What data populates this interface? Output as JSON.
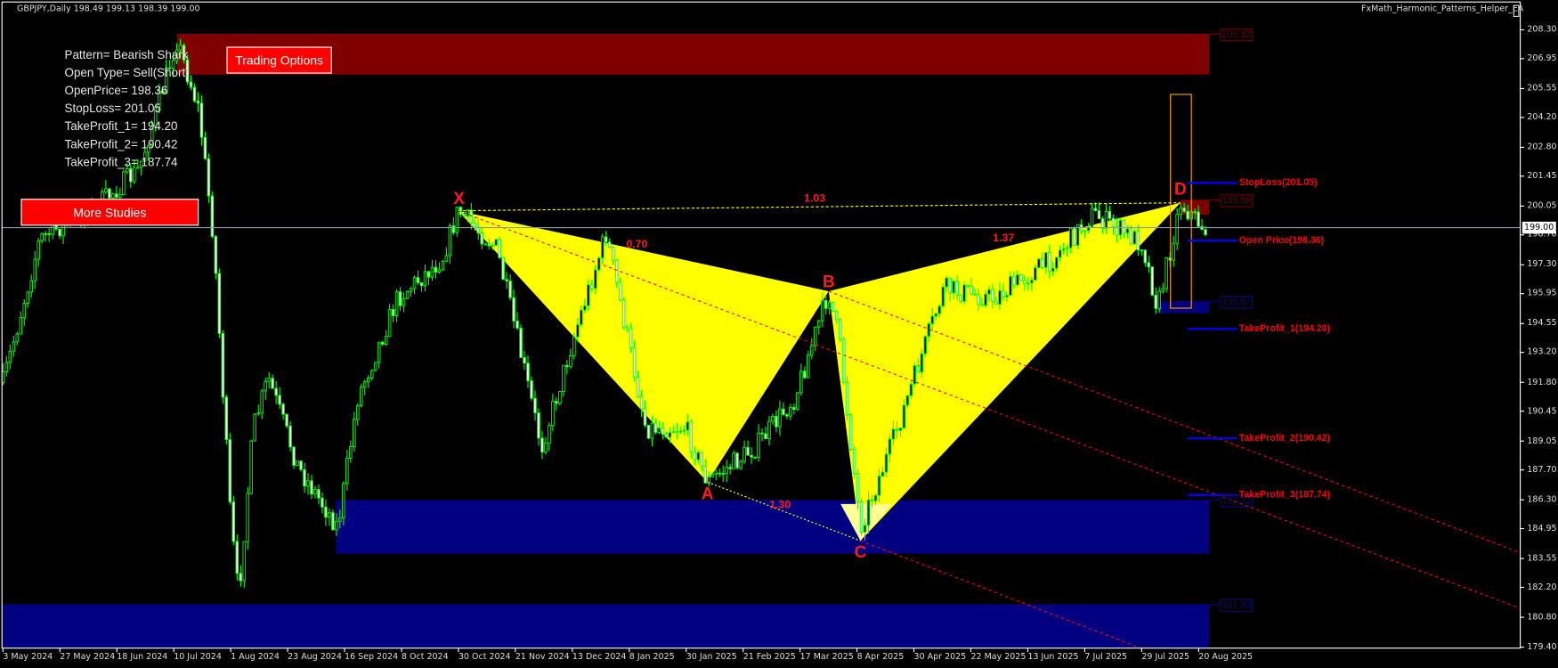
{
  "header": {
    "symbol_info": "GBPJPY,Daily  198.49 199.13 198.39 199.00",
    "ea_name": "FxMath_Harmonic_Patterns_Helper_EA"
  },
  "info_panel": [
    "Pattern= Bearish Shark",
    "Open Type= Sell(Short)",
    "OpenPrice= 198.36",
    "StopLoss= 201.05",
    "TakeProfit_1= 194.20",
    "TakeProfit_2= 190.42",
    "TakeProfit_3= 187.74"
  ],
  "buttons": {
    "trading_options": "Trading Options",
    "more_studies": "More Studies"
  },
  "pattern": {
    "points": [
      "X",
      "A",
      "B",
      "C",
      "D"
    ],
    "ratios": {
      "xb": "0.70",
      "ac": "1.30",
      "bd": "1.37",
      "xd": "1.03"
    }
  },
  "levels": [
    {
      "label": "StopLoss(201.05)",
      "price": 201.05
    },
    {
      "label": "Open Price(198.36)",
      "price": 198.36
    },
    {
      "label": "TakeProfit_1(194.20)",
      "price": 194.2
    },
    {
      "label": "TakeProfit_2(190.42)",
      "price": 190.42
    },
    {
      "label": "TakeProfit_3(187.74)",
      "price": 187.74
    }
  ],
  "zones": [
    {
      "label": "206.12",
      "type": "supply"
    },
    {
      "label": "199.59",
      "type": "supply"
    },
    {
      "label": "195.57",
      "type": "demand"
    },
    {
      "label": "186.22",
      "type": "demand"
    },
    {
      "label": "181.33",
      "type": "demand"
    }
  ],
  "price_axis": [
    "208.30",
    "206.95",
    "205.55",
    "204.20",
    "202.80",
    "201.45",
    "200.05",
    "198.70",
    "197.30",
    "195.95",
    "194.55",
    "193.20",
    "191.80",
    "190.45",
    "189.05",
    "187.70",
    "186.30",
    "184.95",
    "183.55",
    "182.20",
    "180.80",
    "179.40"
  ],
  "current_price": "199.00",
  "date_axis": [
    "3 May 2024",
    "27 May 2024",
    "18 Jun 2024",
    "10 Jul 2024",
    "1 Aug 2024",
    "23 Aug 2024",
    "16 Sep 2024",
    "8 Oct 2024",
    "30 Oct 2024",
    "21 Nov 2024",
    "13 Dec 2024",
    "8 Jan 2025",
    "30 Jan 2025",
    "21 Feb 2025",
    "17 Mar 2025",
    "8 Apr 2025",
    "30 Apr 2025",
    "22 May 2025",
    "13 Jun 2025",
    "7 Jul 2025",
    "29 Jul 2025",
    "20 Aug 2025"
  ],
  "colors": {
    "background": "#000000",
    "candle": "#00ff00",
    "pattern_fill": "#ffff00",
    "supply_zone": "#800000",
    "demand_zone": "#000080",
    "level_line": "#0000ff",
    "label_red": "#ff0000",
    "button": "#ff0000"
  }
}
